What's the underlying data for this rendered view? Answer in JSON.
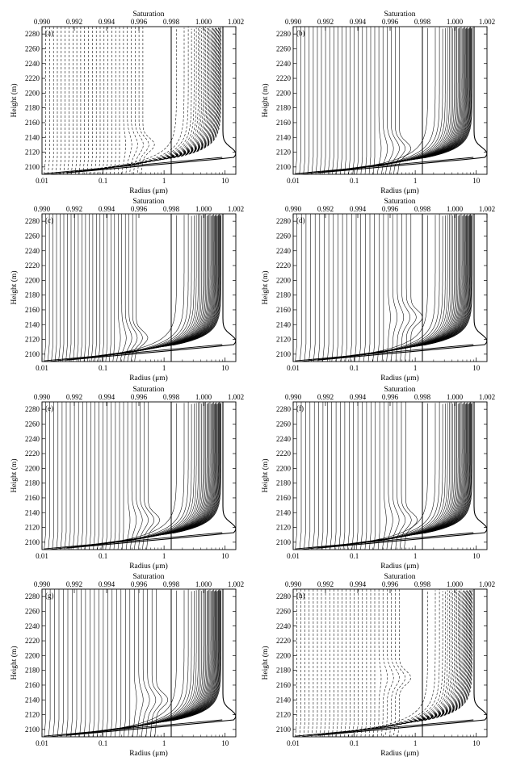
{
  "chart_data": [
    {
      "type": "line",
      "panel_label": "(a)",
      "xlabel": "Radius (μm)",
      "ylabel": "Height (m)",
      "top_xlabel": "Saturation",
      "line_style": "dashed",
      "x_scale": "log",
      "xlim": [
        0.01,
        15
      ],
      "ylim": [
        2090,
        2290
      ],
      "yticks": [
        "2100",
        "2120",
        "2140",
        "2160",
        "2180",
        "2200",
        "2220",
        "2240",
        "2260",
        "2280"
      ],
      "xticks": [
        "0.01",
        "0.1",
        "1",
        "10"
      ],
      "top_ticks": [
        "0.990",
        "0.992",
        "0.994",
        "0.996",
        "0.998",
        "1.000",
        "1.002"
      ],
      "top_lim": [
        0.99,
        1.002
      ],
      "saturation_line_x": 0.998,
      "bulge_height": 2130,
      "bulge_radius": 0.45
    },
    {
      "type": "line",
      "panel_label": "(b)",
      "xlabel": "Radius (μm)",
      "ylabel": "Height (m)",
      "top_xlabel": "Saturation",
      "line_style": "solid",
      "x_scale": "log",
      "xlim": [
        0.01,
        15
      ],
      "ylim": [
        2090,
        2290
      ],
      "yticks": [
        "2100",
        "2120",
        "2140",
        "2160",
        "2180",
        "2200",
        "2220",
        "2240",
        "2260",
        "2280"
      ],
      "xticks": [
        "0.01",
        "0.1",
        "1",
        "10"
      ],
      "top_ticks": [
        "0.990",
        "0.992",
        "0.994",
        "0.996",
        "0.998",
        "1.000",
        "1.002"
      ],
      "top_lim": [
        0.99,
        1.002
      ],
      "saturation_line_x": 0.998,
      "bulge_height": 2125,
      "bulge_radius": 0.55
    },
    {
      "type": "line",
      "panel_label": "(c)",
      "xlabel": "Radius (μm)",
      "ylabel": "Height (m)",
      "top_xlabel": "Saturation",
      "line_style": "solid",
      "x_scale": "log",
      "xlim": [
        0.01,
        15
      ],
      "ylim": [
        2090,
        2290
      ],
      "yticks": [
        "2100",
        "2120",
        "2140",
        "2160",
        "2180",
        "2200",
        "2220",
        "2240",
        "2260",
        "2280"
      ],
      "xticks": [
        "0.01",
        "0.1",
        "1",
        "10"
      ],
      "top_ticks": [
        "0.990",
        "0.992",
        "0.994",
        "0.996",
        "0.998",
        "1.000",
        "1.002"
      ],
      "top_lim": [
        0.99,
        1.002
      ],
      "saturation_line_x": 0.998,
      "bulge_height": 2122,
      "bulge_radius": 0.35
    },
    {
      "type": "line",
      "panel_label": "(d)",
      "xlabel": "Radius (μm)",
      "ylabel": "Height (m)",
      "top_xlabel": "Saturation",
      "line_style": "solid",
      "x_scale": "log",
      "xlim": [
        0.01,
        15
      ],
      "ylim": [
        2090,
        2290
      ],
      "yticks": [
        "2100",
        "2120",
        "2140",
        "2160",
        "2180",
        "2200",
        "2220",
        "2240",
        "2260",
        "2280"
      ],
      "xticks": [
        "0.01",
        "0.1",
        "1",
        "10"
      ],
      "top_ticks": [
        "0.990",
        "0.992",
        "0.994",
        "0.996",
        "0.998",
        "1.000",
        "1.002"
      ],
      "top_lim": [
        0.99,
        1.002
      ],
      "saturation_line_x": 0.998,
      "bulge_height": 2150,
      "bulge_radius": 0.85
    },
    {
      "type": "line",
      "panel_label": "(e)",
      "xlabel": "Radius (μm)",
      "ylabel": "Height (m)",
      "top_xlabel": "Saturation",
      "line_style": "solid",
      "x_scale": "log",
      "xlim": [
        0.01,
        15
      ],
      "ylim": [
        2090,
        2290
      ],
      "yticks": [
        "2100",
        "2120",
        "2140",
        "2160",
        "2180",
        "2200",
        "2220",
        "2240",
        "2260",
        "2280"
      ],
      "xticks": [
        "0.01",
        "0.1",
        "1",
        "10"
      ],
      "top_ticks": [
        "0.990",
        "0.992",
        "0.994",
        "0.996",
        "0.998",
        "1.000",
        "1.002"
      ],
      "top_lim": [
        0.99,
        1.002
      ],
      "saturation_line_x": 0.998,
      "bulge_height": 2130,
      "bulge_radius": 0.55
    },
    {
      "type": "line",
      "panel_label": "(f)",
      "xlabel": "Radius (μm)",
      "ylabel": "Height (m)",
      "top_xlabel": "Saturation",
      "line_style": "solid",
      "x_scale": "log",
      "xlim": [
        0.01,
        15
      ],
      "ylim": [
        2090,
        2290
      ],
      "yticks": [
        "2100",
        "2120",
        "2140",
        "2160",
        "2180",
        "2200",
        "2220",
        "2240",
        "2260",
        "2280"
      ],
      "xticks": [
        "0.01",
        "0.1",
        "1",
        "10"
      ],
      "top_ticks": [
        "0.990",
        "0.992",
        "0.994",
        "0.996",
        "0.998",
        "1.000",
        "1.002"
      ],
      "top_lim": [
        0.99,
        1.002
      ],
      "saturation_line_x": 0.998,
      "bulge_height": 2130,
      "bulge_radius": 0.7
    },
    {
      "type": "line",
      "panel_label": "(g)",
      "xlabel": "Radius (μm)",
      "ylabel": "Height (m)",
      "top_xlabel": "Saturation",
      "line_style": "solid",
      "x_scale": "log",
      "xlim": [
        0.01,
        15
      ],
      "ylim": [
        2090,
        2290
      ],
      "yticks": [
        "2100",
        "2120",
        "2140",
        "2160",
        "2180",
        "2200",
        "2220",
        "2240",
        "2260",
        "2280"
      ],
      "xticks": [
        "0.01",
        "0.1",
        "1",
        "10"
      ],
      "top_ticks": [
        "0.990",
        "0.992",
        "0.994",
        "0.996",
        "0.998",
        "1.000",
        "1.002"
      ],
      "top_lim": [
        0.99,
        1.002
      ],
      "saturation_line_x": 0.998,
      "bulge_height": 2140,
      "bulge_radius": 0.75
    },
    {
      "type": "line",
      "panel_label": "(h)",
      "xlabel": "Radius (μm)",
      "ylabel": "Height (m)",
      "top_xlabel": "Saturation",
      "line_style": "dashed",
      "x_scale": "log",
      "xlim": [
        0.01,
        15
      ],
      "ylim": [
        2090,
        2290
      ],
      "yticks": [
        "2100",
        "2120",
        "2140",
        "2160",
        "2180",
        "2200",
        "2220",
        "2240",
        "2260",
        "2280"
      ],
      "xticks": [
        "0.01",
        "0.1",
        "1",
        "10"
      ],
      "top_ticks": [
        "0.990",
        "0.992",
        "0.994",
        "0.996",
        "0.998",
        "1.000",
        "1.002"
      ],
      "top_lim": [
        0.99,
        1.002
      ],
      "saturation_line_x": 0.998,
      "bulge_height": 2170,
      "bulge_radius": 0.55
    }
  ]
}
